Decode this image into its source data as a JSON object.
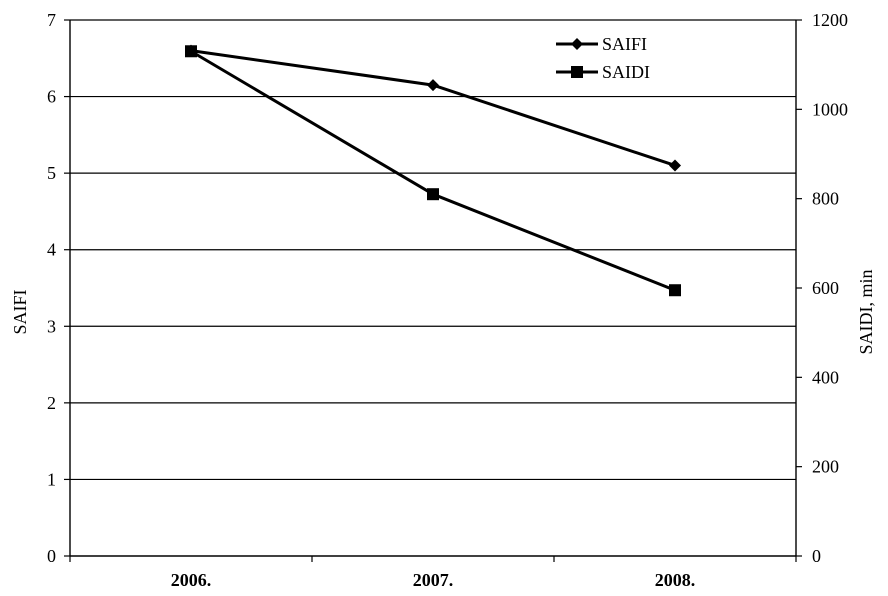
{
  "chart_data": {
    "type": "line",
    "categories": [
      "2006.",
      "2007.",
      "2008."
    ],
    "series": [
      {
        "name": "SAIFI",
        "axis": "left",
        "marker": "diamond",
        "values": [
          6.6,
          6.15,
          5.1
        ]
      },
      {
        "name": "SAIDI",
        "axis": "right",
        "marker": "square",
        "values": [
          1130,
          810,
          595
        ]
      }
    ],
    "ylabel": "SAIFI",
    "y2label": "SAIDI, min",
    "ylim": [
      0,
      7
    ],
    "y2lim": [
      0,
      1200
    ],
    "yticks": [
      "0",
      "1",
      "2",
      "3",
      "4",
      "5",
      "6",
      "7"
    ],
    "y2ticks": [
      "0",
      "200",
      "400",
      "600",
      "800",
      "1000",
      "1200"
    ],
    "grid": "horizontal",
    "legend_position": "top-right",
    "line_color": "#000000"
  }
}
